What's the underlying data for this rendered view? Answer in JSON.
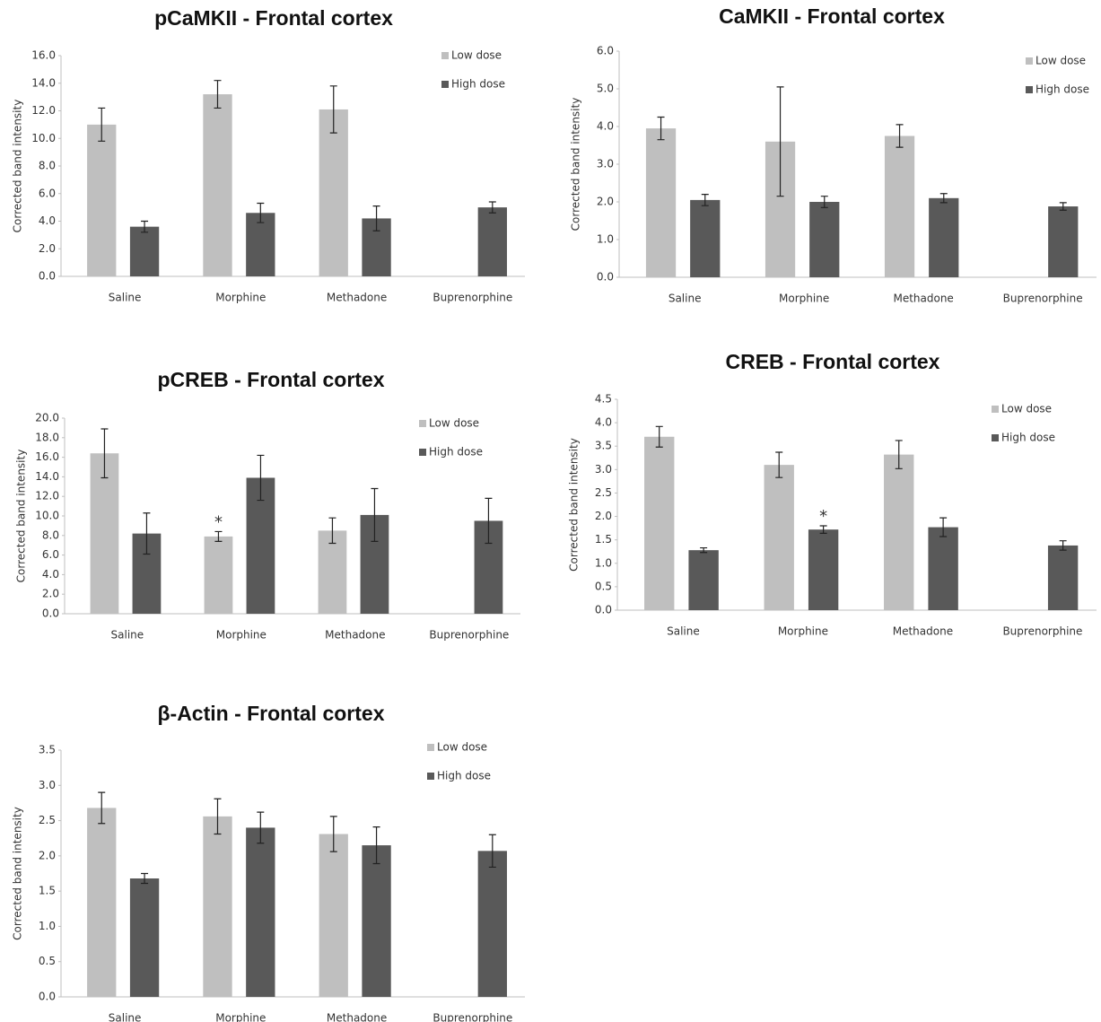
{
  "chart_data": [
    {
      "type": "bar",
      "title": "pCaMKII - Frontal cortex",
      "y_label": "Corrected band intensity",
      "categories": [
        "Saline",
        "Morphine",
        "Methadone",
        "Buprenorphine"
      ],
      "series": [
        {
          "name": "Low dose",
          "color": "#bfbfbf",
          "values": [
            11.0,
            13.2,
            12.1,
            null
          ],
          "errors": [
            1.2,
            1.0,
            1.7,
            null
          ]
        },
        {
          "name": "High dose",
          "color": "#595959",
          "values": [
            3.6,
            4.6,
            4.2,
            5.0
          ],
          "errors": [
            0.4,
            0.7,
            0.9,
            0.4
          ]
        }
      ],
      "ylim": [
        0,
        16
      ],
      "yticks": [
        {
          "value": 0,
          "label": "0.0"
        },
        {
          "value": 2,
          "label": "2.0"
        },
        {
          "value": 4,
          "label": "4.0"
        },
        {
          "value": 6,
          "label": "6.0"
        },
        {
          "value": 8,
          "label": "8.0"
        },
        {
          "value": 10,
          "label": "10.0"
        },
        {
          "value": 12,
          "label": "12.0"
        },
        {
          "value": 14,
          "label": "14.0"
        },
        {
          "value": 16,
          "label": "16.0"
        }
      ]
    },
    {
      "type": "bar",
      "title": "CaMKII - Frontal cortex",
      "y_label": "Corrected band intensity",
      "categories": [
        "Saline",
        "Morphine",
        "Methadone",
        "Buprenorphine"
      ],
      "series": [
        {
          "name": "Low dose",
          "color": "#bfbfbf",
          "values": [
            3.95,
            3.6,
            3.75,
            null
          ],
          "errors": [
            0.3,
            1.45,
            0.3,
            null
          ]
        },
        {
          "name": "High dose",
          "color": "#595959",
          "values": [
            2.05,
            2.0,
            2.1,
            1.88
          ],
          "errors": [
            0.15,
            0.15,
            0.12,
            0.1
          ]
        }
      ],
      "ylim": [
        0,
        6
      ],
      "yticks": [
        {
          "value": 0,
          "label": "0.0"
        },
        {
          "value": 1,
          "label": "1.0"
        },
        {
          "value": 2,
          "label": "2.0"
        },
        {
          "value": 3,
          "label": "3.0"
        },
        {
          "value": 4,
          "label": "4.0"
        },
        {
          "value": 5,
          "label": "5.0"
        },
        {
          "value": 6,
          "label": "6.0"
        }
      ]
    },
    {
      "type": "bar",
      "title": "pCREB - Frontal cortex",
      "y_label": "Corrected band intensity",
      "categories": [
        "Saline",
        "Morphine",
        "Methadone",
        "Buprenorphine"
      ],
      "series": [
        {
          "name": "Low dose",
          "color": "#bfbfbf",
          "values": [
            16.4,
            7.9,
            8.5,
            null
          ],
          "errors": [
            2.5,
            0.5,
            1.3,
            null
          ],
          "annotations": [
            null,
            "*",
            null,
            null
          ]
        },
        {
          "name": "High dose",
          "color": "#595959",
          "values": [
            8.2,
            13.9,
            10.1,
            9.5
          ],
          "errors": [
            2.1,
            2.3,
            2.7,
            2.3
          ]
        }
      ],
      "ylim": [
        0,
        20
      ],
      "yticks": [
        {
          "value": 0,
          "label": "0.0"
        },
        {
          "value": 2,
          "label": "2.0"
        },
        {
          "value": 4,
          "label": "4.0"
        },
        {
          "value": 6,
          "label": "6.0"
        },
        {
          "value": 8,
          "label": "8.0"
        },
        {
          "value": 10,
          "label": "10.0"
        },
        {
          "value": 12,
          "label": "12.0"
        },
        {
          "value": 14,
          "label": "14.0"
        },
        {
          "value": 16,
          "label": "16.0"
        },
        {
          "value": 18,
          "label": "18.0"
        },
        {
          "value": 20,
          "label": "20.0"
        }
      ]
    },
    {
      "type": "bar",
      "title": "CREB - Frontal cortex",
      "y_label": "Corrected band intensity",
      "categories": [
        "Saline",
        "Morphine",
        "Methadone",
        "Buprenorphine"
      ],
      "series": [
        {
          "name": "Low dose",
          "color": "#bfbfbf",
          "values": [
            3.7,
            3.1,
            3.32,
            null
          ],
          "errors": [
            0.22,
            0.27,
            0.3,
            null
          ]
        },
        {
          "name": "High dose",
          "color": "#595959",
          "values": [
            1.28,
            1.72,
            1.77,
            1.38
          ],
          "errors": [
            0.05,
            0.08,
            0.2,
            0.1
          ],
          "annotations": [
            null,
            "*",
            null,
            null
          ]
        }
      ],
      "ylim": [
        0,
        4.5
      ],
      "yticks": [
        {
          "value": 0,
          "label": "0.0"
        },
        0.5,
        {
          "value": 1,
          "label": "1.0"
        },
        1.5,
        {
          "value": 2,
          "label": "2.0"
        },
        2.5,
        {
          "value": 3,
          "label": "3.0"
        },
        3.5,
        {
          "value": 4,
          "label": "4.0"
        },
        4.5
      ]
    },
    {
      "type": "bar",
      "title": "β-Actin - Frontal cortex",
      "y_label": "Corrected band intensity",
      "categories": [
        "Saline",
        "Morphine",
        "Methadone",
        "Buprenorphine"
      ],
      "series": [
        {
          "name": "Low dose",
          "color": "#bfbfbf",
          "values": [
            2.68,
            2.56,
            2.31,
            null
          ],
          "errors": [
            0.22,
            0.25,
            0.25,
            null
          ]
        },
        {
          "name": "High dose",
          "color": "#595959",
          "values": [
            1.68,
            2.4,
            2.15,
            2.07
          ],
          "errors": [
            0.07,
            0.22,
            0.26,
            0.23
          ]
        }
      ],
      "ylim": [
        0,
        3.5
      ],
      "yticks": [
        {
          "value": 0,
          "label": "0.0"
        },
        0.5,
        {
          "value": 1,
          "label": "1.0"
        },
        1.5,
        {
          "value": 2,
          "label": "2.0"
        },
        2.5,
        {
          "value": 3,
          "label": "3.0"
        },
        3.5
      ]
    }
  ]
}
